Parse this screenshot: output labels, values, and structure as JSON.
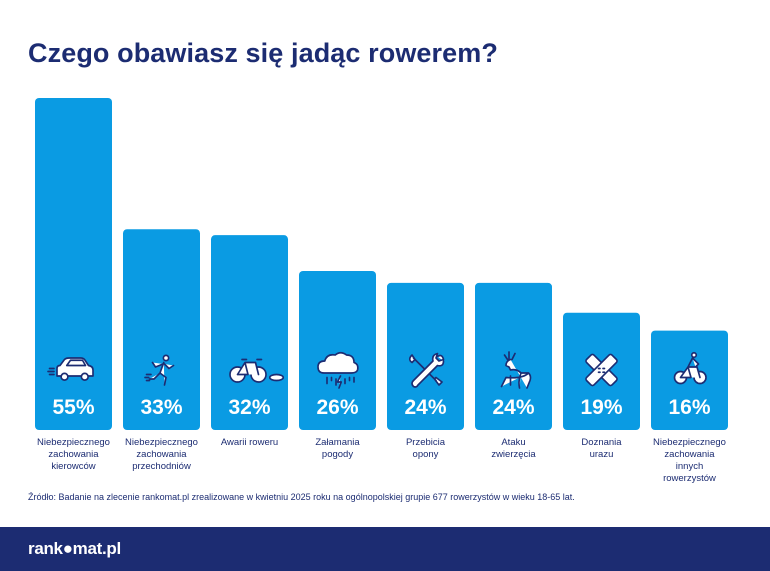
{
  "title": "Czego obawiasz się jadąc rowerem?",
  "source": "Źródło: Badanie na zlecenie rankomat.pl zrealizowane w kwietniu 2025 roku na ogólnopolskiej grupie 677 rowerzystów w wieku 18-65 lat.",
  "logo": "rank●mat.pl",
  "colors": {
    "bar": "#0a9be3",
    "title": "#1c2c72",
    "footer": "#1c2c72",
    "icon": "#1c2c72"
  },
  "chart_data": {
    "type": "bar",
    "categories": [
      [
        "Niebezpiecznego",
        "zachowania",
        "kierowców"
      ],
      [
        "Niebezpiecznego",
        "zachowania",
        "przechodniów"
      ],
      [
        "Awarii roweru"
      ],
      [
        "Załamania",
        "pogody"
      ],
      [
        "Przebicia",
        "opony"
      ],
      [
        "Ataku",
        "zwierzęcia"
      ],
      [
        "Doznania",
        "urazu"
      ],
      [
        "Niebezpiecznego",
        "zachowania",
        "innych",
        "rowerzystów"
      ]
    ],
    "values": [
      55,
      33,
      32,
      26,
      24,
      24,
      19,
      16
    ],
    "value_labels": [
      "55%",
      "33%",
      "32%",
      "26%",
      "24%",
      "24%",
      "19%",
      "16%"
    ],
    "icons": [
      "car-icon",
      "pedestrian-icon",
      "broken-bike-icon",
      "storm-cloud-icon",
      "tools-icon",
      "deer-icon",
      "bandage-icon",
      "cyclist-icon"
    ],
    "ylim": [
      0,
      55
    ]
  }
}
